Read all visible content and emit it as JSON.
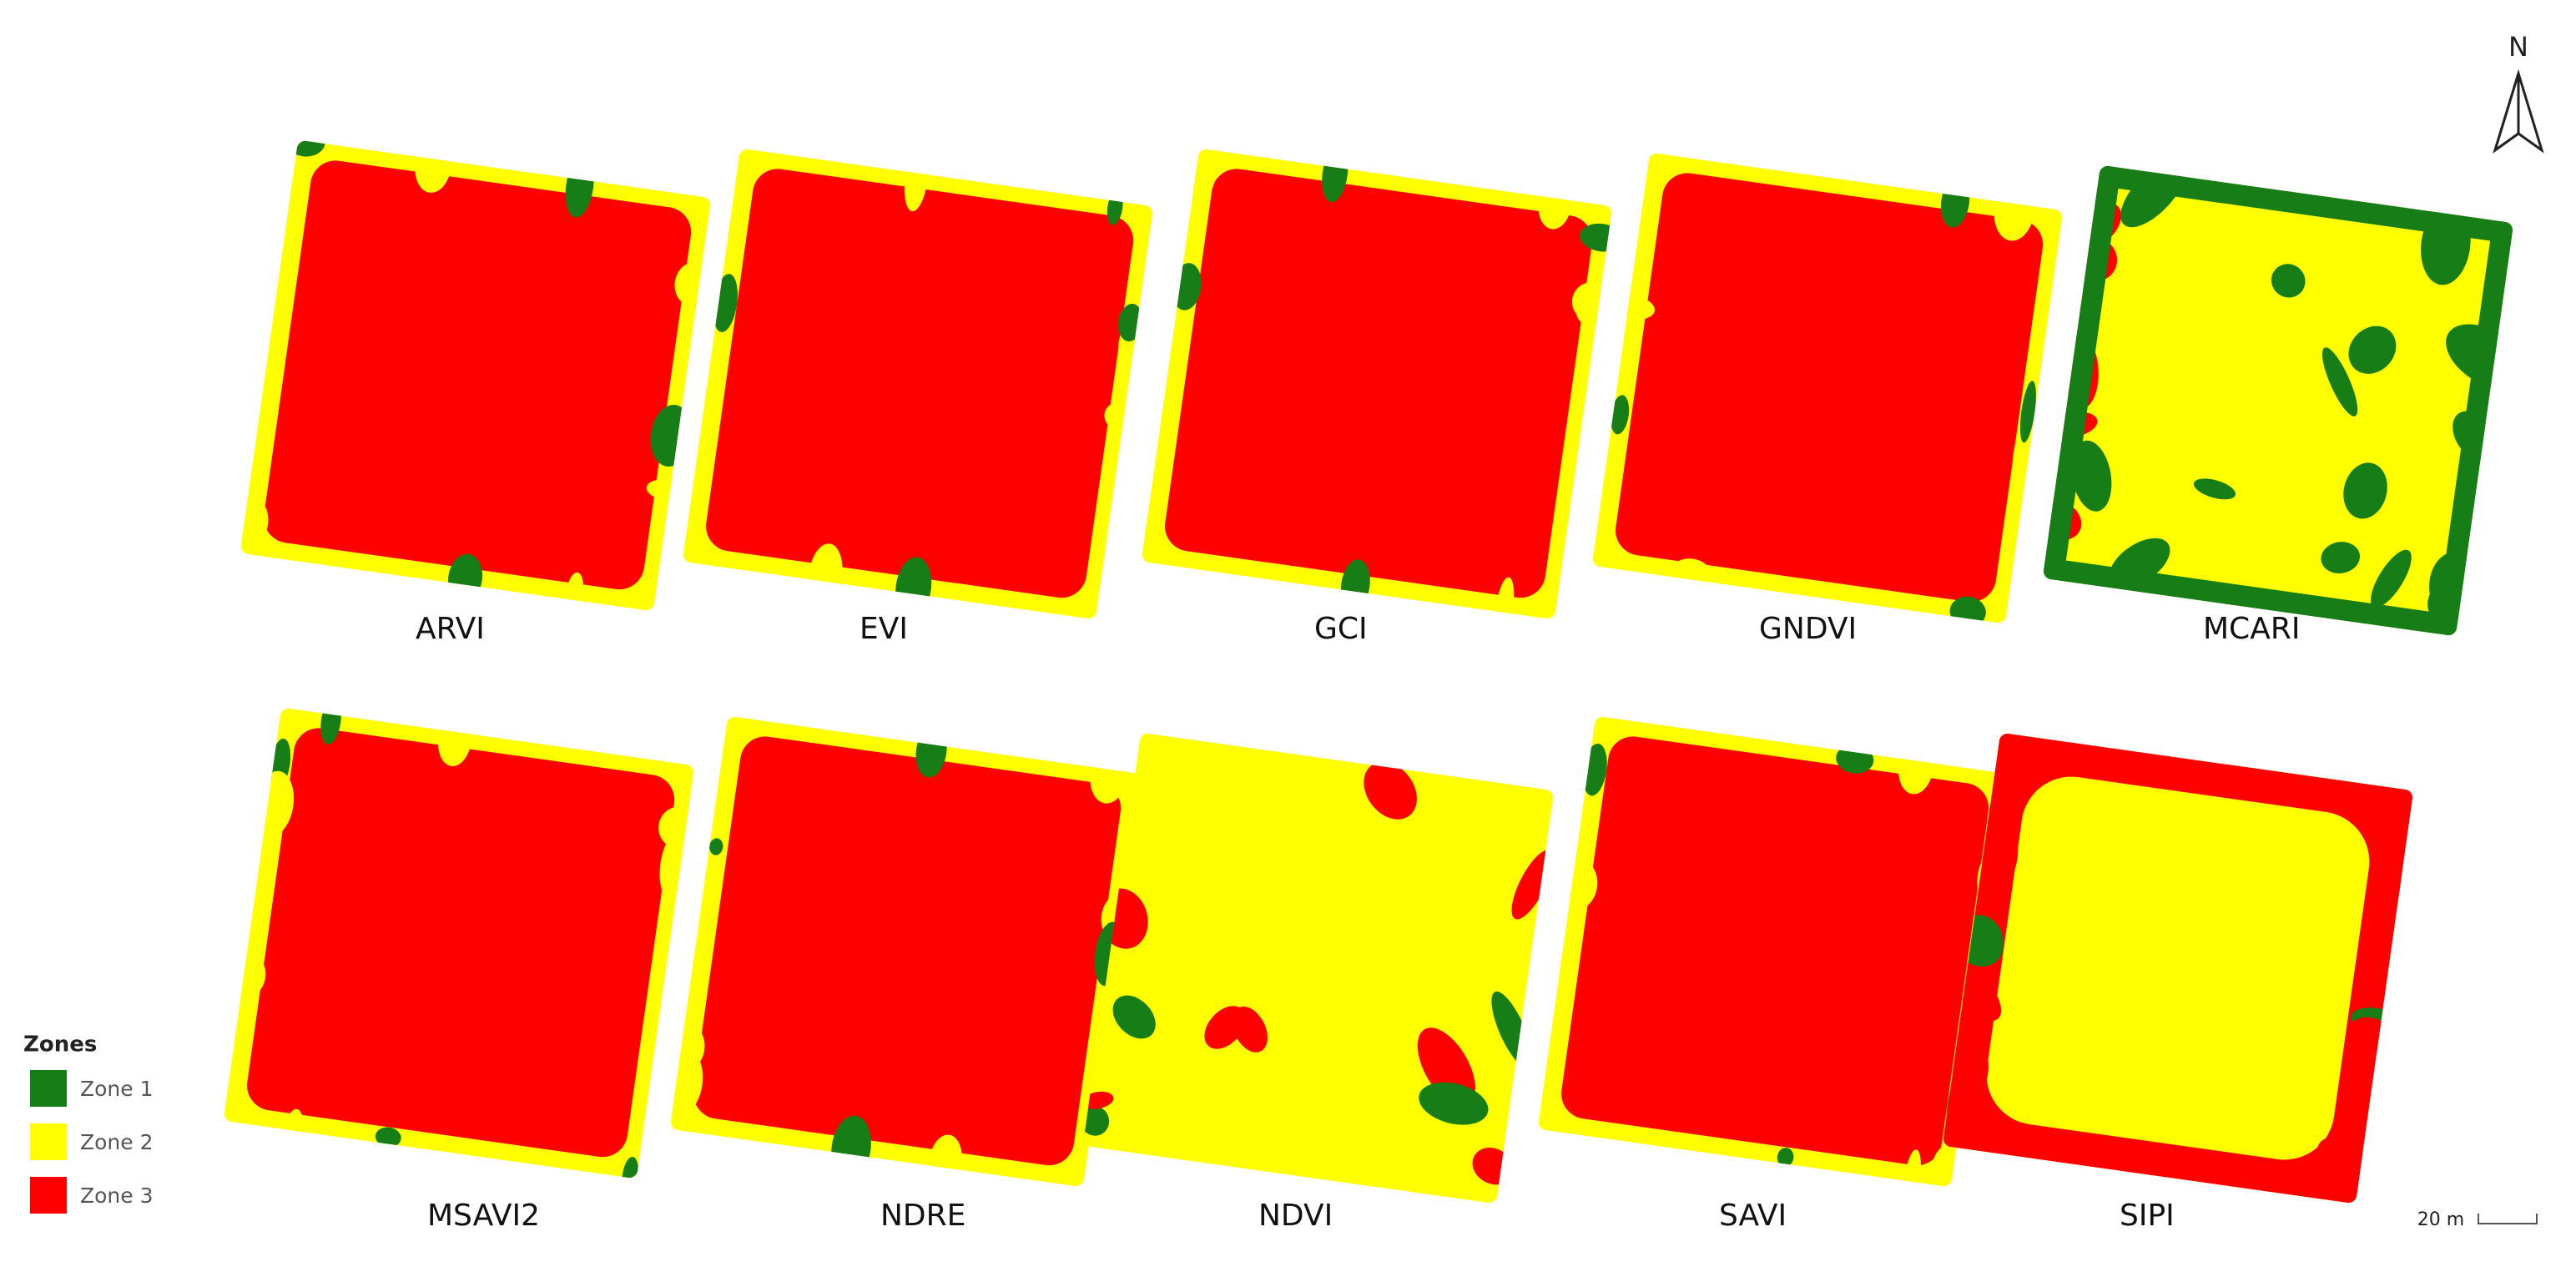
{
  "panels": [
    {
      "label": "ARVI"
    },
    {
      "label": "EVI"
    },
    {
      "label": "GCI"
    },
    {
      "label": "GNDVI"
    },
    {
      "label": "MCARI"
    },
    {
      "label": "MSAVI2"
    },
    {
      "label": "NDRE"
    },
    {
      "label": "NDVI"
    },
    {
      "label": "SAVI"
    },
    {
      "label": "SIPI"
    }
  ],
  "legend": {
    "title": "Zones",
    "items": [
      {
        "label": "Zone 1",
        "color": "#177e17"
      },
      {
        "label": "Zone 2",
        "color": "#ffff00"
      },
      {
        "label": "Zone 3",
        "color": "#ff0000"
      }
    ]
  },
  "north": "N",
  "scale_bar": "20 m"
}
